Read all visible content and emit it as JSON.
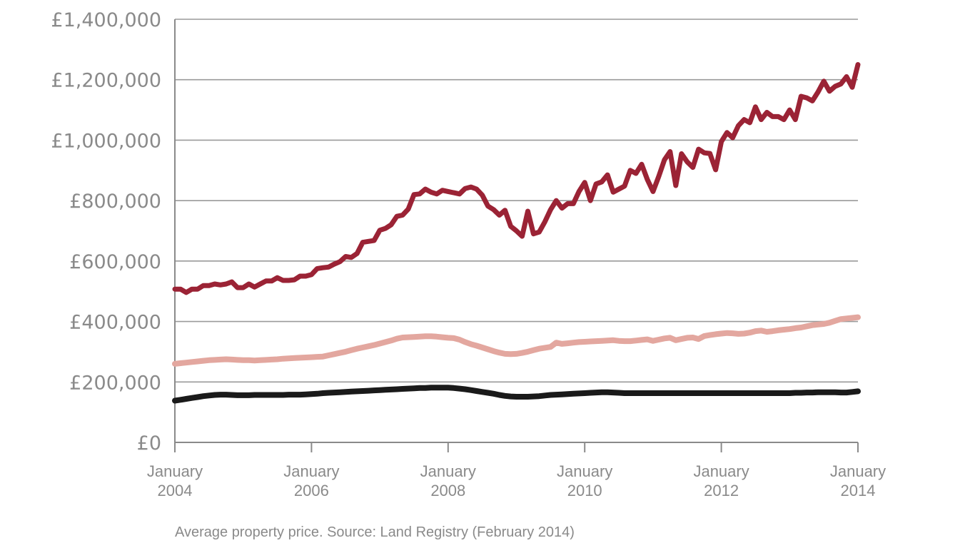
{
  "chart_data": {
    "type": "line",
    "title": "",
    "caption": "Average property price. Source: Land Registry (February 2014)",
    "xlabel": "",
    "ylabel": "",
    "x_start": "2004-01",
    "x_end": "2014-01",
    "x_interval": "monthly",
    "ylim": [
      0,
      1400000
    ],
    "grid": true,
    "legend": "none",
    "y_ticks": [
      {
        "value": 0,
        "label": "£0"
      },
      {
        "value": 200000,
        "label": "£200,000"
      },
      {
        "value": 400000,
        "label": "£400,000"
      },
      {
        "value": 600000,
        "label": "£600,000"
      },
      {
        "value": 800000,
        "label": "£800,000"
      },
      {
        "value": 1000000,
        "label": "£1,000,000"
      },
      {
        "value": 1200000,
        "label": "£1,200,000"
      },
      {
        "value": 1400000,
        "label": "£1,400,000"
      }
    ],
    "x_ticks": [
      {
        "month_index": 0,
        "line1": "January",
        "line2": "2004"
      },
      {
        "month_index": 24,
        "line1": "January",
        "line2": "2006"
      },
      {
        "month_index": 48,
        "line1": "January",
        "line2": "2008"
      },
      {
        "month_index": 72,
        "line1": "January",
        "line2": "2010"
      },
      {
        "month_index": 96,
        "line1": "January",
        "line2": "2012"
      },
      {
        "month_index": 120,
        "line1": "January",
        "line2": "2014"
      }
    ],
    "series": [
      {
        "name": "series-dark-red",
        "color": "#9b2335",
        "values": [
          507000,
          507000,
          496000,
          507000,
          507000,
          519000,
          519000,
          524000,
          521000,
          524000,
          531000,
          512000,
          512000,
          524000,
          514000,
          524000,
          534000,
          534000,
          545000,
          536000,
          536000,
          538000,
          550000,
          550000,
          555000,
          575000,
          578000,
          580000,
          590000,
          598000,
          615000,
          612000,
          625000,
          662000,
          665000,
          668000,
          702000,
          708000,
          720000,
          748000,
          752000,
          772000,
          820000,
          822000,
          838000,
          828000,
          822000,
          834000,
          830000,
          826000,
          822000,
          840000,
          845000,
          838000,
          818000,
          782000,
          770000,
          752000,
          768000,
          715000,
          700000,
          682000,
          765000,
          690000,
          696000,
          730000,
          770000,
          800000,
          775000,
          790000,
          790000,
          830000,
          860000,
          800000,
          855000,
          862000,
          885000,
          828000,
          838000,
          848000,
          900000,
          890000,
          920000,
          870000,
          830000,
          880000,
          935000,
          962000,
          850000,
          955000,
          928000,
          910000,
          970000,
          958000,
          956000,
          902000,
          995000,
          1025000,
          1008000,
          1048000,
          1068000,
          1058000,
          1110000,
          1068000,
          1092000,
          1078000,
          1078000,
          1068000,
          1100000,
          1068000,
          1145000,
          1140000,
          1130000,
          1160000,
          1195000,
          1162000,
          1178000,
          1186000,
          1210000,
          1175000,
          1250000
        ]
      },
      {
        "name": "series-pink",
        "color": "#e3a79f",
        "values": [
          260000,
          262000,
          264000,
          266000,
          268000,
          270000,
          272000,
          273000,
          274000,
          275000,
          274000,
          273000,
          272000,
          272000,
          271000,
          272000,
          273000,
          274000,
          275000,
          277000,
          278000,
          279000,
          280000,
          281000,
          282000,
          283000,
          284000,
          288000,
          292000,
          296000,
          300000,
          305000,
          310000,
          314000,
          318000,
          322000,
          327000,
          332000,
          337000,
          343000,
          347000,
          348000,
          349000,
          350000,
          351000,
          351000,
          350000,
          348000,
          346000,
          345000,
          340000,
          332000,
          325000,
          320000,
          314000,
          308000,
          302000,
          297000,
          293000,
          292000,
          293000,
          296000,
          300000,
          305000,
          310000,
          313000,
          316000,
          330000,
          326000,
          328000,
          330000,
          332000,
          333000,
          334000,
          335000,
          336000,
          337000,
          338000,
          336000,
          335000,
          335000,
          337000,
          339000,
          341000,
          336000,
          340000,
          344000,
          346000,
          338000,
          342000,
          346000,
          347000,
          342000,
          352000,
          355000,
          358000,
          360000,
          362000,
          361000,
          359000,
          360000,
          363000,
          368000,
          370000,
          366000,
          368000,
          371000,
          373000,
          375000,
          378000,
          380000,
          384000,
          388000,
          390000,
          392000,
          396000,
          402000,
          408000,
          410000,
          412000,
          414000
        ]
      },
      {
        "name": "series-black",
        "color": "#1a1a1a",
        "values": [
          138000,
          141000,
          144000,
          147000,
          150000,
          153000,
          155000,
          157000,
          158000,
          158000,
          157000,
          156000,
          156000,
          156000,
          157000,
          157000,
          157000,
          157000,
          157000,
          157000,
          158000,
          158000,
          158000,
          159000,
          160000,
          161000,
          163000,
          164000,
          165000,
          166000,
          167000,
          168000,
          169000,
          170000,
          171000,
          172000,
          173000,
          174000,
          175000,
          176000,
          177000,
          178000,
          179000,
          180000,
          180000,
          181000,
          181000,
          181000,
          181000,
          180000,
          178000,
          176000,
          173000,
          170000,
          167000,
          164000,
          161000,
          157000,
          154000,
          152000,
          151000,
          151000,
          151000,
          152000,
          153000,
          155000,
          157000,
          158000,
          159000,
          160000,
          161000,
          162000,
          163000,
          164000,
          165000,
          166000,
          166000,
          165000,
          164000,
          163000,
          163000,
          163000,
          163000,
          163000,
          163000,
          163000,
          163000,
          163000,
          163000,
          163000,
          163000,
          163000,
          163000,
          163000,
          163000,
          163000,
          163000,
          163000,
          163000,
          163000,
          163000,
          163000,
          163000,
          163000,
          163000,
          163000,
          163000,
          163000,
          163000,
          164000,
          164000,
          165000,
          165000,
          166000,
          166000,
          166000,
          166000,
          165000,
          165000,
          167000,
          169000
        ]
      }
    ]
  }
}
